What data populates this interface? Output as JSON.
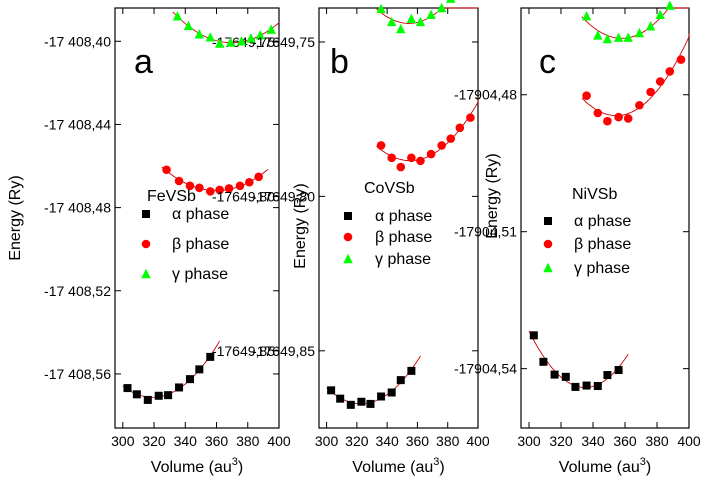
{
  "colors": {
    "alpha": "#000000",
    "beta": "#ff0000",
    "gamma": "#00ff00",
    "fit": "#cc0000"
  },
  "chart_data": [
    {
      "type": "scatter",
      "panel_label": "a",
      "compound": "FeVSb",
      "xlabel": "Volume (au",
      "xlabel_sup": "3",
      "xlabel_tail": ")",
      "ylabel": "Energy (Ry)",
      "xlim": [
        295,
        400
      ],
      "xticks": [
        300,
        320,
        340,
        360,
        380,
        400
      ],
      "xtick_labels": [
        "300",
        "320",
        "340",
        "360",
        "380",
        "400"
      ],
      "grid": false,
      "legend_position": "center",
      "axes": [
        {
          "ylim": [
            -17408.586,
            -17408.384
          ],
          "yticks": [
            -17408.4,
            -17408.44,
            -17408.48,
            -17408.52,
            -17408.56
          ],
          "ytick_labels": [
            "-17 408,40",
            "-17 408,44",
            "-17 408,48",
            "-17 408,52",
            "-17 408,56"
          ],
          "series": [
            {
              "phase": "alpha",
              "marker": "square",
              "x": [
                303,
                309,
                316,
                323,
                329,
                336,
                343,
                349,
                356
              ],
              "y": [
                -17408.5668,
                -17408.5698,
                -17408.5725,
                -17408.5705,
                -17408.5702,
                -17408.5665,
                -17408.5625,
                -17408.5578,
                -17408.5518
              ]
            },
            {
              "phase": "beta",
              "marker": "circle",
              "x": [
                328,
                336,
                343,
                349,
                356,
                362,
                368,
                375,
                381,
                387
              ],
              "y": [
                -17408.4618,
                -17408.4672,
                -17408.4695,
                -17408.4705,
                -17408.4722,
                -17408.4715,
                -17408.4708,
                -17408.4695,
                -17408.4678,
                -17408.4652
              ]
            }
          ]
        },
        {
          "ylim": [
            -17649.875,
            -17649.739
          ],
          "yticks": [
            -17649.75,
            -17649.8,
            -17649.85
          ],
          "ytick_labels": [
            "-17649,75",
            "-17649,80",
            "-17649,85"
          ],
          "series": [
            {
              "phase": "gamma",
              "marker": "triangle",
              "x": [
                335,
                342,
                349,
                356,
                362,
                369,
                376,
                382,
                388,
                395
              ],
              "y": [
                -17649.7417,
                -17649.7448,
                -17649.7475,
                -17649.7485,
                -17649.7505,
                -17649.7502,
                -17649.7498,
                -17649.7488,
                -17649.7478,
                -17649.746
              ]
            }
          ]
        }
      ]
    },
    {
      "type": "scatter",
      "panel_label": "b",
      "compound": "CoVSb",
      "xlabel": "Volume (au",
      "xlabel_sup": "3",
      "xlabel_tail": ")",
      "ylabel": "Energy (Ry)",
      "xlim": [
        295,
        400
      ],
      "xticks": [
        300,
        320,
        340,
        360,
        380,
        400
      ],
      "xtick_labels": [
        "300",
        "320",
        "340",
        "360",
        "380",
        "400"
      ],
      "grid": false,
      "legend_position": "center",
      "axes": [
        {
          "ylim": [
            -17649.875,
            -17649.739
          ],
          "yticks": [
            -17649.75,
            -17649.8,
            -17649.85
          ],
          "ytick_labels": [
            "-17649,75",
            "-17649,80",
            "-17649,85"
          ],
          "series": [
            {
              "phase": "alpha",
              "marker": "square",
              "x": [
                303,
                309,
                316,
                323,
                329,
                336,
                343,
                349,
                356
              ],
              "y": [
                -17649.8628,
                -17649.8655,
                -17649.8675,
                -17649.8665,
                -17649.8672,
                -17649.8648,
                -17649.8635,
                -17649.8595,
                -17649.8565
              ]
            },
            {
              "phase": "beta",
              "marker": "circle",
              "x": [
                336,
                343,
                349,
                356,
                362,
                369,
                376,
                382,
                388,
                395
              ],
              "y": [
                -17649.7835,
                -17649.7875,
                -17649.7905,
                -17649.7875,
                -17649.7885,
                -17649.7863,
                -17649.7835,
                -17649.7813,
                -17649.7778,
                -17649.7745
              ]
            },
            {
              "phase": "gamma",
              "marker": "triangle",
              "x": [
                336,
                343,
                349,
                356,
                362,
                369,
                376,
                382,
                388,
                395
              ],
              "y": [
                -17649.7393,
                -17649.7435,
                -17649.7458,
                -17649.7425,
                -17649.7435,
                -17649.7412,
                -17649.739,
                -17649.736,
                -17649.7325,
                -17649.727
              ]
            }
          ]
        }
      ]
    },
    {
      "type": "scatter",
      "panel_label": "c",
      "compound": "NiVSb",
      "xlabel": "Volume (au",
      "xlabel_sup": "3",
      "xlabel_tail": ")",
      "ylabel": "Energy (Ry)",
      "xlim": [
        295,
        400
      ],
      "xticks": [
        300,
        320,
        340,
        360,
        380,
        400
      ],
      "xtick_labels": [
        "300",
        "320",
        "340",
        "360",
        "380",
        "400"
      ],
      "grid": false,
      "legend_position": "center",
      "axes": [
        {
          "ylim": [
            -17904.553,
            -17904.461
          ],
          "yticks": [
            -17904.48,
            -17904.51,
            -17904.54
          ],
          "ytick_labels": [
            "-17904,48",
            "-17904,51",
            "-17904,54"
          ],
          "series": [
            {
              "phase": "alpha",
              "marker": "square",
              "x": [
                303,
                309,
                316,
                323,
                329,
                336,
                343,
                349,
                356
              ],
              "y": [
                -17904.5327,
                -17904.5385,
                -17904.5413,
                -17904.5418,
                -17904.544,
                -17904.5437,
                -17904.5438,
                -17904.5414,
                -17904.5403
              ]
            },
            {
              "phase": "beta",
              "marker": "circle",
              "x": [
                336,
                343,
                349,
                356,
                362,
                369,
                376,
                382,
                388,
                395
              ],
              "y": [
                -17904.4802,
                -17904.484,
                -17904.4858,
                -17904.4849,
                -17904.4852,
                -17904.4823,
                -17904.4794,
                -17904.4771,
                -17904.4749,
                -17904.4723
              ]
            },
            {
              "phase": "gamma",
              "marker": "triangle",
              "x": [
                336,
                343,
                349,
                356,
                362,
                369,
                376,
                382,
                388,
                395
              ],
              "y": [
                -17904.4628,
                -17904.467,
                -17904.4678,
                -17904.4675,
                -17904.4675,
                -17904.4665,
                -17904.465,
                -17904.4625,
                -17904.4605,
                -17904.4578
              ]
            }
          ]
        }
      ]
    }
  ],
  "legend": {
    "items": [
      {
        "symbol": "α",
        "text": " phase"
      },
      {
        "symbol": "β",
        "text": " phase"
      },
      {
        "symbol": "γ",
        "text": " phase"
      }
    ]
  }
}
